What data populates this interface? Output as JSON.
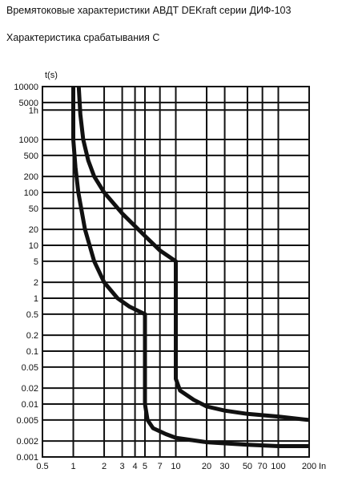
{
  "page": {
    "title": "Времятоковые характеристики АВДТ DEKraft серии ДИФ-103",
    "subtitle": "Характеристика срабатывания С"
  },
  "chart_data": {
    "type": "line",
    "ylabel": "t(s)",
    "xlabel": "In",
    "xscale": "log",
    "yscale": "log",
    "xlim": [
      0.5,
      200
    ],
    "ylim": [
      0.001,
      10000
    ],
    "grid": true,
    "x_ticks": [
      {
        "value": 0.5,
        "label": "0.5"
      },
      {
        "value": 1,
        "label": "1"
      },
      {
        "value": 2,
        "label": "2"
      },
      {
        "value": 3,
        "label": "3"
      },
      {
        "value": 4,
        "label": "4"
      },
      {
        "value": 5,
        "label": "5"
      },
      {
        "value": 7,
        "label": "7"
      },
      {
        "value": 10,
        "label": "10"
      },
      {
        "value": 20,
        "label": "20"
      },
      {
        "value": 30,
        "label": "30"
      },
      {
        "value": 50,
        "label": "50"
      },
      {
        "value": 70,
        "label": "70"
      },
      {
        "value": 100,
        "label": "100"
      },
      {
        "value": 200,
        "label": "200"
      }
    ],
    "y_ticks": [
      {
        "value": 10000,
        "label": "10000"
      },
      {
        "value": 5000,
        "label": "5000"
      },
      {
        "value": 3600,
        "label": "1h"
      },
      {
        "value": 1000,
        "label": "1000"
      },
      {
        "value": 500,
        "label": "500"
      },
      {
        "value": 200,
        "label": "200"
      },
      {
        "value": 100,
        "label": "100"
      },
      {
        "value": 50,
        "label": "50"
      },
      {
        "value": 20,
        "label": "20"
      },
      {
        "value": 10,
        "label": "10"
      },
      {
        "value": 5,
        "label": "5"
      },
      {
        "value": 2,
        "label": "2"
      },
      {
        "value": 1,
        "label": "1"
      },
      {
        "value": 0.5,
        "label": "0.5"
      },
      {
        "value": 0.2,
        "label": "0.2"
      },
      {
        "value": 0.1,
        "label": "0.1"
      },
      {
        "value": 0.05,
        "label": "0.05"
      },
      {
        "value": 0.02,
        "label": "0.02"
      },
      {
        "value": 0.01,
        "label": "0.01"
      },
      {
        "value": 0.005,
        "label": "0.005"
      },
      {
        "value": 0.002,
        "label": "0.002"
      },
      {
        "value": 0.001,
        "label": "0.001"
      }
    ],
    "series": [
      {
        "color": "#111111",
        "points": [
          [
            1.13,
            10000
          ],
          [
            1.17,
            3000
          ],
          [
            1.25,
            1000
          ],
          [
            1.4,
            400
          ],
          [
            1.6,
            200
          ],
          [
            2.0,
            100
          ],
          [
            3.0,
            40
          ],
          [
            5.0,
            15
          ],
          [
            7.0,
            8
          ],
          [
            10.0,
            5
          ],
          [
            10.0,
            0.03
          ],
          [
            11.0,
            0.018
          ],
          [
            15.0,
            0.012
          ],
          [
            20.0,
            0.009
          ],
          [
            30.0,
            0.0075
          ],
          [
            50.0,
            0.0065
          ],
          [
            100.0,
            0.0058
          ],
          [
            200.0,
            0.005
          ]
        ]
      },
      {
        "color": "#111111",
        "points": [
          [
            1.0,
            10000
          ],
          [
            1.0,
            1000
          ],
          [
            1.05,
            300
          ],
          [
            1.12,
            100
          ],
          [
            1.3,
            20
          ],
          [
            1.6,
            5
          ],
          [
            2.0,
            2
          ],
          [
            2.7,
            1.0
          ],
          [
            3.5,
            0.7
          ],
          [
            4.5,
            0.55
          ],
          [
            5.0,
            0.5
          ],
          [
            5.0,
            0.01
          ],
          [
            5.3,
            0.005
          ],
          [
            6.0,
            0.0035
          ],
          [
            8.0,
            0.0027
          ],
          [
            10.0,
            0.0023
          ],
          [
            20.0,
            0.0019
          ],
          [
            50.0,
            0.0017
          ],
          [
            100.0,
            0.0016
          ],
          [
            200.0,
            0.0016
          ]
        ]
      }
    ]
  }
}
